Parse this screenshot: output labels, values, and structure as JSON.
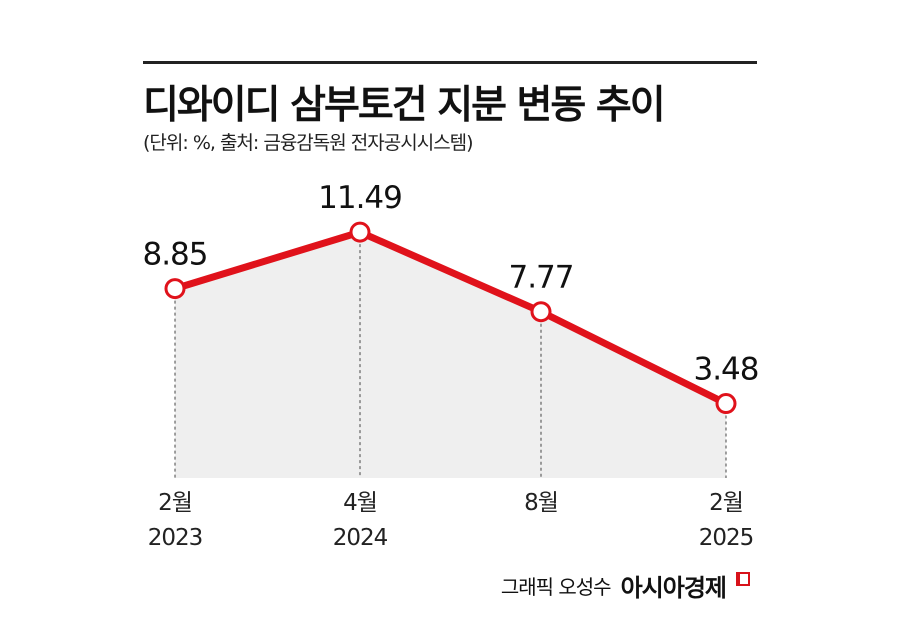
{
  "header": {
    "title": "디와이디 삼부토건 지분 변동 추이",
    "subtitle": "(단위: %, 출처: 금융감독원 전자공시시스템)"
  },
  "footer": {
    "credit": "그래픽 오성수",
    "brand": "아시아경제"
  },
  "colors": {
    "line": "#e0121b",
    "area": "#efefef",
    "marker_fill": "#ffffff"
  },
  "chart_data": {
    "type": "area",
    "title": "디와이디 삼부토건 지분 변동 추이",
    "unit": "%",
    "categories": [
      [
        "2월",
        "2023"
      ],
      [
        "4월",
        "2024"
      ],
      [
        "8월",
        ""
      ],
      [
        "2월",
        "2025"
      ]
    ],
    "values": [
      8.85,
      11.49,
      7.77,
      3.48
    ],
    "value_labels": [
      "8.85",
      "11.49",
      "7.77",
      "3.48"
    ],
    "ylim": [
      0,
      11.49
    ],
    "grid": false,
    "legend": "none"
  }
}
